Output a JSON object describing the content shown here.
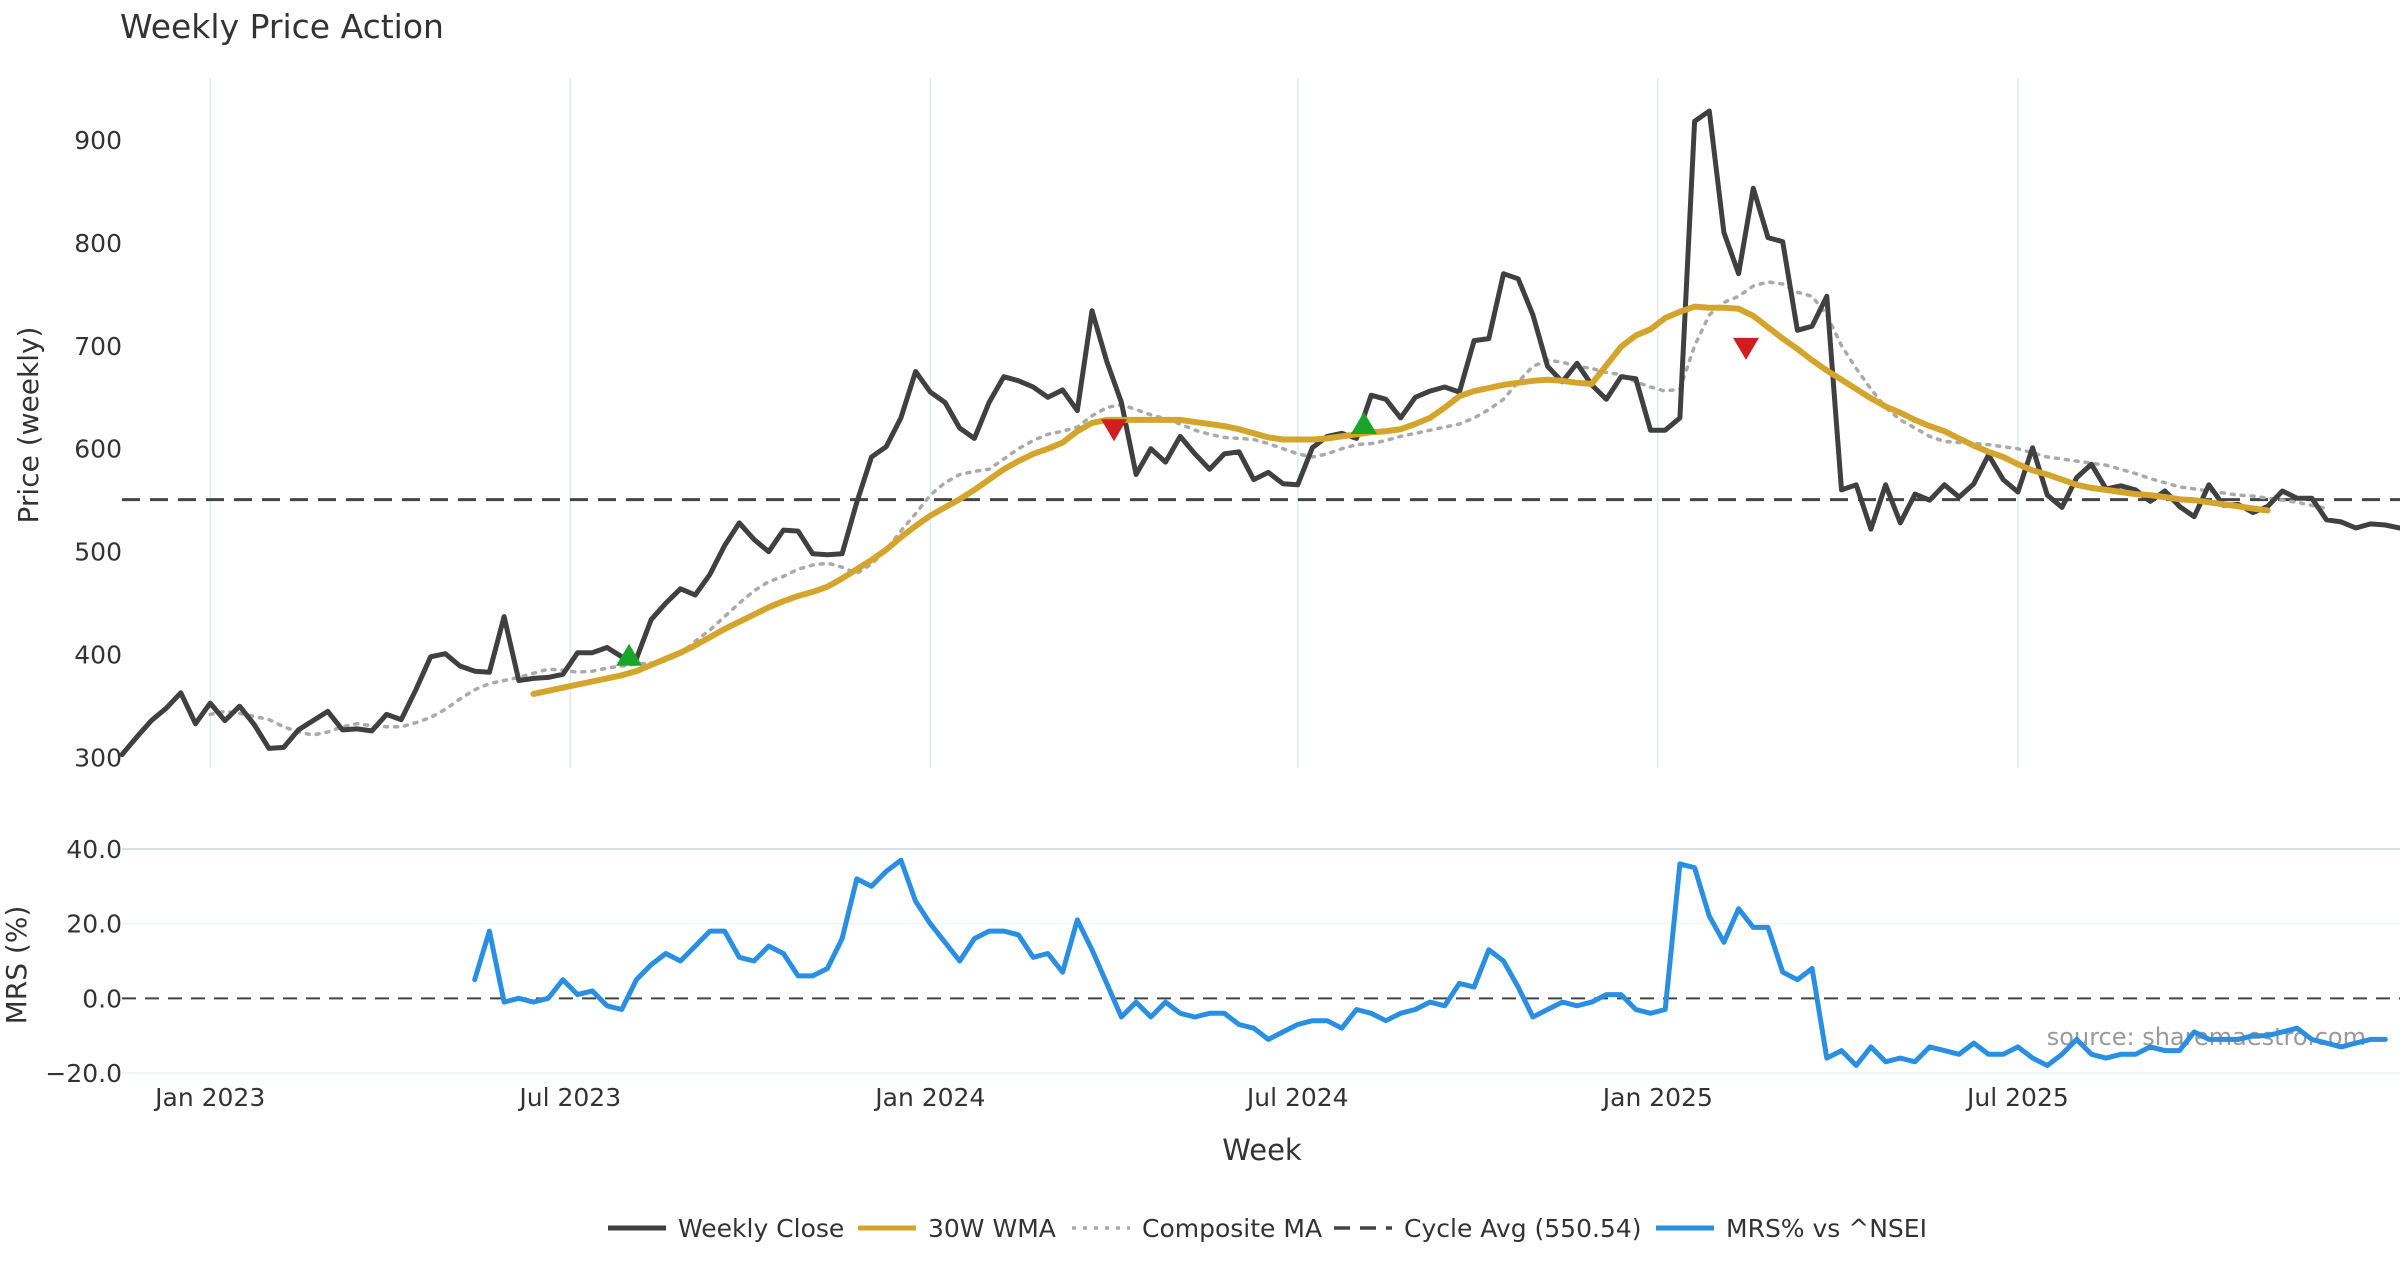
{
  "chart_data": [
    {
      "type": "line",
      "title": "Weekly Price Action",
      "ylabel": "Price (weekly)",
      "xlabel": "",
      "ylim": [
        290,
        960
      ],
      "yticks": [
        300,
        400,
        500,
        600,
        700,
        800,
        900
      ],
      "xlim_weeks": [
        0,
        155
      ],
      "cycle_avg": 550.54,
      "colors": {
        "close": "#404040",
        "wma": "#d4a52c",
        "composite": "#aaaaaa",
        "cycle": "#444444",
        "buy": "#1aa52a",
        "sell": "#d01f1f",
        "grid": "#e3eaef"
      },
      "series": [
        {
          "name": "Weekly Close",
          "start_week": 0,
          "values": [
            303,
            320,
            336,
            348,
            363,
            333,
            353,
            336,
            350,
            332,
            309,
            310,
            327,
            336,
            345,
            327,
            328,
            326,
            342,
            337,
            366,
            398,
            401,
            389,
            384,
            383,
            437,
            375,
            377,
            378,
            381,
            402,
            402,
            407,
            398,
            396,
            434,
            450,
            464,
            458,
            478,
            506,
            528,
            512,
            500,
            521,
            520,
            498,
            497,
            498,
            548,
            592,
            602,
            630,
            675,
            655,
            645,
            620,
            610,
            645,
            670,
            666,
            660,
            650,
            657,
            637,
            734,
            685,
            645,
            575,
            600,
            587,
            612,
            595,
            580,
            595,
            597,
            570,
            577,
            566,
            565,
            601,
            612,
            615,
            610,
            652,
            648,
            630,
            650,
            656,
            660,
            655,
            705,
            707,
            770,
            765,
            730,
            680,
            665,
            683,
            662,
            648,
            670,
            668,
            618,
            618,
            630,
            918,
            928,
            810,
            770,
            853,
            805,
            801,
            715,
            719,
            748,
            560,
            565,
            522,
            565,
            528,
            556,
            550,
            565,
            553,
            566,
            594,
            570,
            558,
            601,
            555,
            543,
            572,
            585,
            561,
            564,
            560,
            549,
            559,
            544,
            534,
            565,
            545,
            546,
            538,
            544,
            559,
            552,
            552,
            531,
            529,
            523,
            527,
            526,
            523,
            522
          ]
        },
        {
          "name": "30W WMA",
          "start_week": 28,
          "values": [
            362,
            365,
            368,
            371,
            374,
            377,
            380,
            384,
            390,
            396,
            402,
            409,
            417,
            425,
            432,
            439,
            446,
            452,
            457,
            461,
            466,
            474,
            483,
            492,
            502,
            514,
            525,
            535,
            543,
            551,
            560,
            570,
            580,
            588,
            595,
            600,
            606,
            617,
            625,
            628,
            628,
            628,
            628,
            628,
            628,
            626,
            624,
            622,
            619,
            615,
            611,
            609,
            609,
            609,
            610,
            612,
            614,
            616,
            617,
            619,
            624,
            630,
            640,
            651,
            656,
            659,
            662,
            664,
            666,
            667,
            666,
            664,
            663,
            681,
            699,
            710,
            716,
            727,
            733,
            738,
            737,
            737,
            736,
            729,
            718,
            707,
            697,
            686,
            676,
            667,
            658,
            649,
            641,
            635,
            628,
            622,
            617,
            610,
            603,
            597,
            592,
            585,
            579,
            575,
            570,
            565,
            562,
            560,
            558,
            556,
            555,
            553,
            551,
            550,
            548,
            546,
            544,
            542,
            540
          ]
        },
        {
          "name": "Composite MA",
          "start_week": 6,
          "values": [
            342,
            345,
            343,
            340,
            337,
            330,
            325,
            322,
            325,
            330,
            333,
            331,
            330,
            330,
            334,
            339,
            347,
            357,
            366,
            372,
            375,
            378,
            382,
            386,
            385,
            383,
            384,
            387,
            389,
            391,
            392,
            394,
            401,
            413,
            424,
            437,
            450,
            462,
            471,
            476,
            483,
            487,
            489,
            485,
            479,
            488,
            502,
            520,
            537,
            555,
            567,
            575,
            578,
            580,
            590,
            600,
            608,
            614,
            617,
            621,
            632,
            640,
            643,
            638,
            633,
            629,
            624,
            618,
            614,
            611,
            610,
            609,
            605,
            600,
            595,
            592,
            595,
            600,
            604,
            605,
            608,
            612,
            615,
            618,
            621,
            624,
            630,
            638,
            648,
            665,
            680,
            686,
            684,
            680,
            678,
            674,
            672,
            665,
            660,
            656,
            658,
            700,
            730,
            742,
            748,
            758,
            762,
            760,
            752,
            748,
            730,
            700,
            678,
            658,
            640,
            628,
            620,
            612,
            607,
            606,
            605,
            604,
            602,
            600,
            596,
            592,
            590,
            588,
            586,
            584,
            580,
            576,
            571,
            567,
            563,
            561,
            559,
            557,
            555,
            554,
            552,
            550,
            548,
            545,
            542
          ]
        },
        {
          "name": "Cycle Avg (550.54)",
          "value": 550.54
        }
      ],
      "markers": [
        {
          "type": "buy",
          "week": 34.5,
          "value": 400
        },
        {
          "type": "sell",
          "week": 67.5,
          "value": 618
        },
        {
          "type": "buy",
          "week": 84.5,
          "value": 625
        },
        {
          "type": "sell",
          "week": 110.5,
          "value": 697
        }
      ]
    },
    {
      "type": "line",
      "title": "",
      "ylabel": "MRS (%)",
      "xlabel": "Week",
      "ylim": [
        -20,
        40
      ],
      "yticks": [
        40,
        20,
        0,
        -20
      ],
      "ytick_labels": [
        "40.0",
        "20.0",
        "0.0",
        "−20.0"
      ],
      "xticks": [
        {
          "week": 6,
          "label": "Jan 2023"
        },
        {
          "week": 30.5,
          "label": "Jul 2023"
        },
        {
          "week": 55,
          "label": "Jan 2024"
        },
        {
          "week": 80,
          "label": "Jul 2024"
        },
        {
          "week": 104.5,
          "label": "Jan 2025"
        },
        {
          "week": 129,
          "label": "Jul 2025"
        }
      ],
      "zero_line": 0,
      "annotation": "source: sharemaestro.com",
      "colors": {
        "mrs": "#2a8fe0"
      },
      "series": [
        {
          "name": "MRS% vs ^NSEI",
          "start_week": 24,
          "values": [
            5,
            18,
            -1,
            0,
            -1,
            0,
            5,
            1,
            2,
            -2,
            -3,
            5,
            9,
            12,
            10,
            14,
            18,
            18,
            11,
            10,
            14,
            12,
            6,
            6,
            8,
            16,
            32,
            30,
            34,
            37,
            26,
            20,
            15,
            10,
            16,
            18,
            18,
            17,
            11,
            12,
            7,
            21,
            13,
            4,
            -5,
            -1,
            -5,
            -1,
            -4,
            -5,
            -4,
            -4,
            -7,
            -8,
            -11,
            -9,
            -7,
            -6,
            -6,
            -8,
            -3,
            -4,
            -6,
            -4,
            -3,
            -1,
            -2,
            4,
            3,
            13,
            10,
            3,
            -5,
            -3,
            -1,
            -2,
            -1,
            1,
            1,
            -3,
            -4,
            -3,
            36,
            35,
            22,
            15,
            24,
            19,
            19,
            7,
            5,
            8,
            -16,
            -14,
            -18,
            -13,
            -17,
            -16,
            -17,
            -13,
            -14,
            -15,
            -12,
            -15,
            -15,
            -13,
            -16,
            -18,
            -15,
            -11,
            -15,
            -16,
            -15,
            -15,
            -13,
            -14,
            -14,
            -9,
            -11,
            -11,
            -11,
            -10,
            -10,
            -9,
            -8,
            -11,
            -12,
            -13,
            -12,
            -11,
            -11
          ]
        }
      ]
    }
  ],
  "legend": [
    {
      "label": "Weekly Close",
      "style": "solid",
      "color": "#404040"
    },
    {
      "label": "30W WMA",
      "style": "solid",
      "color": "#d4a52c"
    },
    {
      "label": "Composite MA",
      "style": "dotted",
      "color": "#aaaaaa"
    },
    {
      "label": "Cycle Avg (550.54)",
      "style": "dashed",
      "color": "#444444"
    },
    {
      "label": "MRS% vs ^NSEI",
      "style": "solid",
      "color": "#2a8fe0"
    }
  ]
}
